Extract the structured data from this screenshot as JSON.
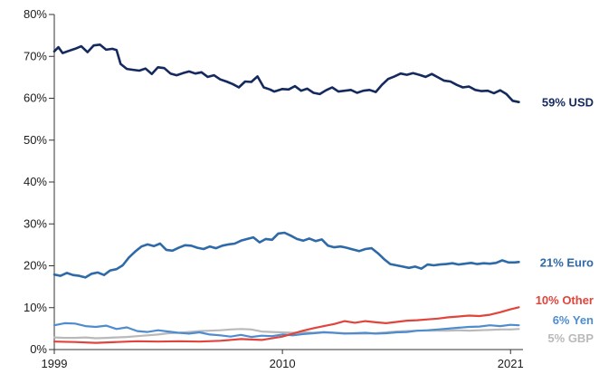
{
  "chart_data": {
    "type": "line",
    "title": "",
    "xlabel": "",
    "ylabel": "",
    "ylim": [
      0,
      80
    ],
    "xlim": [
      1999,
      2021.6
    ],
    "grid": false,
    "legend": "none (labels at line ends)",
    "y_ticks": [
      "0%",
      "10%",
      "20%",
      "30%",
      "40%",
      "50%",
      "60%",
      "70%",
      "80%"
    ],
    "x_ticks": [
      {
        "value": 1999,
        "label": "1999"
      },
      {
        "value": 2010,
        "label": "2010"
      },
      {
        "value": 2021,
        "label": "2021"
      }
    ],
    "series": [
      {
        "name": "59% USD",
        "color": "#14295e",
        "x": [
          1999,
          1999.2,
          1999.4,
          1999.7,
          2000,
          2000.3,
          2000.6,
          2000.9,
          2001.2,
          2001.5,
          2001.8,
          2002,
          2002.2,
          2002.5,
          2002.8,
          2003.1,
          2003.4,
          2003.7,
          2004,
          2004.3,
          2004.6,
          2004.9,
          2005.2,
          2005.5,
          2005.8,
          2006.1,
          2006.4,
          2006.7,
          2007,
          2007.3,
          2007.6,
          2007.9,
          2008.2,
          2008.5,
          2008.8,
          2009.1,
          2009.4,
          2009.6,
          2009.8,
          2010,
          2010.3,
          2010.6,
          2010.9,
          2011.2,
          2011.5,
          2011.8,
          2012.1,
          2012.4,
          2012.7,
          2013,
          2013.3,
          2013.6,
          2013.9,
          2014.2,
          2014.5,
          2014.8,
          2015.1,
          2015.4,
          2015.7,
          2016,
          2016.3,
          2016.6,
          2016.9,
          2017.2,
          2017.5,
          2017.8,
          2018.1,
          2018.4,
          2018.7,
          2019,
          2019.3,
          2019.6,
          2019.9,
          2020.2,
          2020.5,
          2020.8,
          2021.1,
          2021.4
        ],
        "values": [
          71.2,
          72.2,
          70.8,
          71.3,
          71.8,
          72.4,
          71.0,
          72.6,
          72.8,
          71.6,
          71.8,
          71.5,
          68.2,
          67.0,
          66.8,
          66.6,
          67.1,
          65.8,
          67.4,
          67.2,
          65.9,
          65.5,
          66.0,
          66.4,
          65.9,
          66.2,
          65.1,
          65.5,
          64.5,
          64.0,
          63.4,
          62.6,
          64.0,
          63.9,
          65.2,
          62.6,
          62.1,
          61.6,
          61.9,
          62.2,
          62.1,
          62.9,
          61.8,
          62.3,
          61.3,
          61.0,
          61.9,
          62.6,
          61.6,
          61.8,
          62.0,
          61.3,
          61.8,
          62.0,
          61.5,
          63.2,
          64.6,
          65.2,
          65.9,
          65.6,
          66.0,
          65.6,
          65.1,
          65.8,
          65.0,
          64.2,
          64.0,
          63.2,
          62.6,
          62.8,
          62.0,
          61.7,
          61.8,
          61.2,
          61.9,
          61.0,
          59.4,
          59.1
        ]
      },
      {
        "name": "21% Euro",
        "color": "#2e69a8",
        "x": [
          1999,
          1999.3,
          1999.6,
          1999.9,
          2000.2,
          2000.5,
          2000.8,
          2001.1,
          2001.4,
          2001.7,
          2002,
          2002.3,
          2002.6,
          2002.9,
          2003.2,
          2003.5,
          2003.8,
          2004.1,
          2004.4,
          2004.7,
          2005,
          2005.3,
          2005.6,
          2005.9,
          2006.2,
          2006.5,
          2006.8,
          2007.1,
          2007.4,
          2007.7,
          2008,
          2008.3,
          2008.6,
          2008.9,
          2009.2,
          2009.5,
          2009.8,
          2010.1,
          2010.4,
          2010.7,
          2011,
          2011.3,
          2011.6,
          2011.9,
          2012.2,
          2012.5,
          2012.8,
          2013.1,
          2013.4,
          2013.7,
          2014,
          2014.3,
          2014.6,
          2014.9,
          2015.2,
          2015.5,
          2015.8,
          2016.1,
          2016.4,
          2016.7,
          2017,
          2017.3,
          2017.6,
          2017.9,
          2018.2,
          2018.5,
          2018.8,
          2019.1,
          2019.4,
          2019.7,
          2020,
          2020.3,
          2020.6,
          2020.9,
          2021.2,
          2021.4
        ],
        "values": [
          17.9,
          17.6,
          18.3,
          17.8,
          17.6,
          17.2,
          18.1,
          18.4,
          17.8,
          18.9,
          19.2,
          20.1,
          22.0,
          23.4,
          24.6,
          25.1,
          24.7,
          25.3,
          23.8,
          23.6,
          24.3,
          24.9,
          24.8,
          24.3,
          24.0,
          24.6,
          24.2,
          24.8,
          25.1,
          25.3,
          26.0,
          26.4,
          26.8,
          25.6,
          26.4,
          26.2,
          27.7,
          27.9,
          27.2,
          26.4,
          26.0,
          26.5,
          25.9,
          26.3,
          24.8,
          24.4,
          24.6,
          24.3,
          23.9,
          23.5,
          24.0,
          24.2,
          23.0,
          21.6,
          20.4,
          20.1,
          19.8,
          19.5,
          19.8,
          19.3,
          20.3,
          20.1,
          20.3,
          20.4,
          20.6,
          20.3,
          20.5,
          20.7,
          20.4,
          20.6,
          20.5,
          20.7,
          21.3,
          20.8,
          20.8,
          20.9
        ]
      },
      {
        "name": "10% Other",
        "color": "#e0453d",
        "x": [
          1999,
          2000,
          2001,
          2002,
          2003,
          2004,
          2005,
          2006,
          2007,
          2008,
          2009,
          2010,
          2010.5,
          2011,
          2011.5,
          2012,
          2012.5,
          2013,
          2013.5,
          2014,
          2014.5,
          2015,
          2015.5,
          2016,
          2016.5,
          2017,
          2017.5,
          2018,
          2018.5,
          2019,
          2019.5,
          2020,
          2020.5,
          2021,
          2021.4
        ],
        "values": [
          1.9,
          1.8,
          1.6,
          1.8,
          2.0,
          1.9,
          2.0,
          1.9,
          2.1,
          2.5,
          2.3,
          3.1,
          3.8,
          4.5,
          5.1,
          5.6,
          6.1,
          6.8,
          6.4,
          6.8,
          6.5,
          6.3,
          6.6,
          6.9,
          7.0,
          7.2,
          7.4,
          7.7,
          7.9,
          8.1,
          8.0,
          8.3,
          8.9,
          9.6,
          10.1
        ]
      },
      {
        "name": "6% Yen",
        "color": "#4f8ccf",
        "x": [
          1999,
          1999.5,
          2000,
          2000.5,
          2001,
          2001.5,
          2002,
          2002.5,
          2003,
          2003.5,
          2004,
          2004.5,
          2005,
          2005.5,
          2006,
          2006.5,
          2007,
          2007.5,
          2008,
          2008.5,
          2009,
          2009.5,
          2010,
          2010.5,
          2011,
          2011.5,
          2012,
          2012.5,
          2013,
          2013.5,
          2014,
          2014.5,
          2015,
          2015.5,
          2016,
          2016.5,
          2017,
          2017.5,
          2018,
          2018.5,
          2019,
          2019.5,
          2020,
          2020.5,
          2021,
          2021.4
        ],
        "values": [
          5.8,
          6.3,
          6.2,
          5.6,
          5.4,
          5.7,
          4.9,
          5.3,
          4.4,
          4.2,
          4.6,
          4.3,
          4.0,
          3.8,
          4.1,
          3.6,
          3.4,
          3.1,
          3.5,
          3.0,
          3.3,
          3.2,
          3.6,
          3.4,
          3.7,
          3.9,
          4.1,
          4.0,
          3.8,
          3.9,
          4.0,
          3.8,
          3.9,
          4.1,
          4.2,
          4.5,
          4.6,
          4.8,
          5.0,
          5.2,
          5.4,
          5.5,
          5.8,
          5.6,
          5.9,
          5.8
        ]
      },
      {
        "name": "5% GBP",
        "color": "#b9b9b9",
        "x": [
          1999,
          1999.5,
          2000,
          2000.5,
          2001,
          2001.5,
          2002,
          2002.5,
          2003,
          2003.5,
          2004,
          2004.5,
          2005,
          2005.5,
          2006,
          2006.5,
          2007,
          2007.5,
          2008,
          2008.5,
          2009,
          2009.5,
          2010,
          2010.5,
          2011,
          2011.5,
          2012,
          2012.5,
          2013,
          2013.5,
          2014,
          2014.5,
          2015,
          2015.5,
          2016,
          2016.5,
          2017,
          2017.5,
          2018,
          2018.5,
          2019,
          2019.5,
          2020,
          2020.5,
          2021,
          2021.4
        ],
        "values": [
          2.9,
          2.8,
          2.8,
          2.9,
          2.7,
          2.8,
          2.9,
          3.0,
          3.2,
          3.4,
          3.6,
          3.9,
          4.0,
          4.2,
          4.4,
          4.5,
          4.6,
          4.8,
          4.9,
          4.8,
          4.3,
          4.2,
          4.1,
          4.0,
          4.1,
          4.0,
          4.2,
          4.0,
          3.9,
          3.8,
          3.8,
          3.9,
          4.1,
          4.3,
          4.4,
          4.5,
          4.5,
          4.5,
          4.5,
          4.6,
          4.5,
          4.6,
          4.7,
          4.8,
          4.8,
          4.9
        ]
      }
    ]
  }
}
